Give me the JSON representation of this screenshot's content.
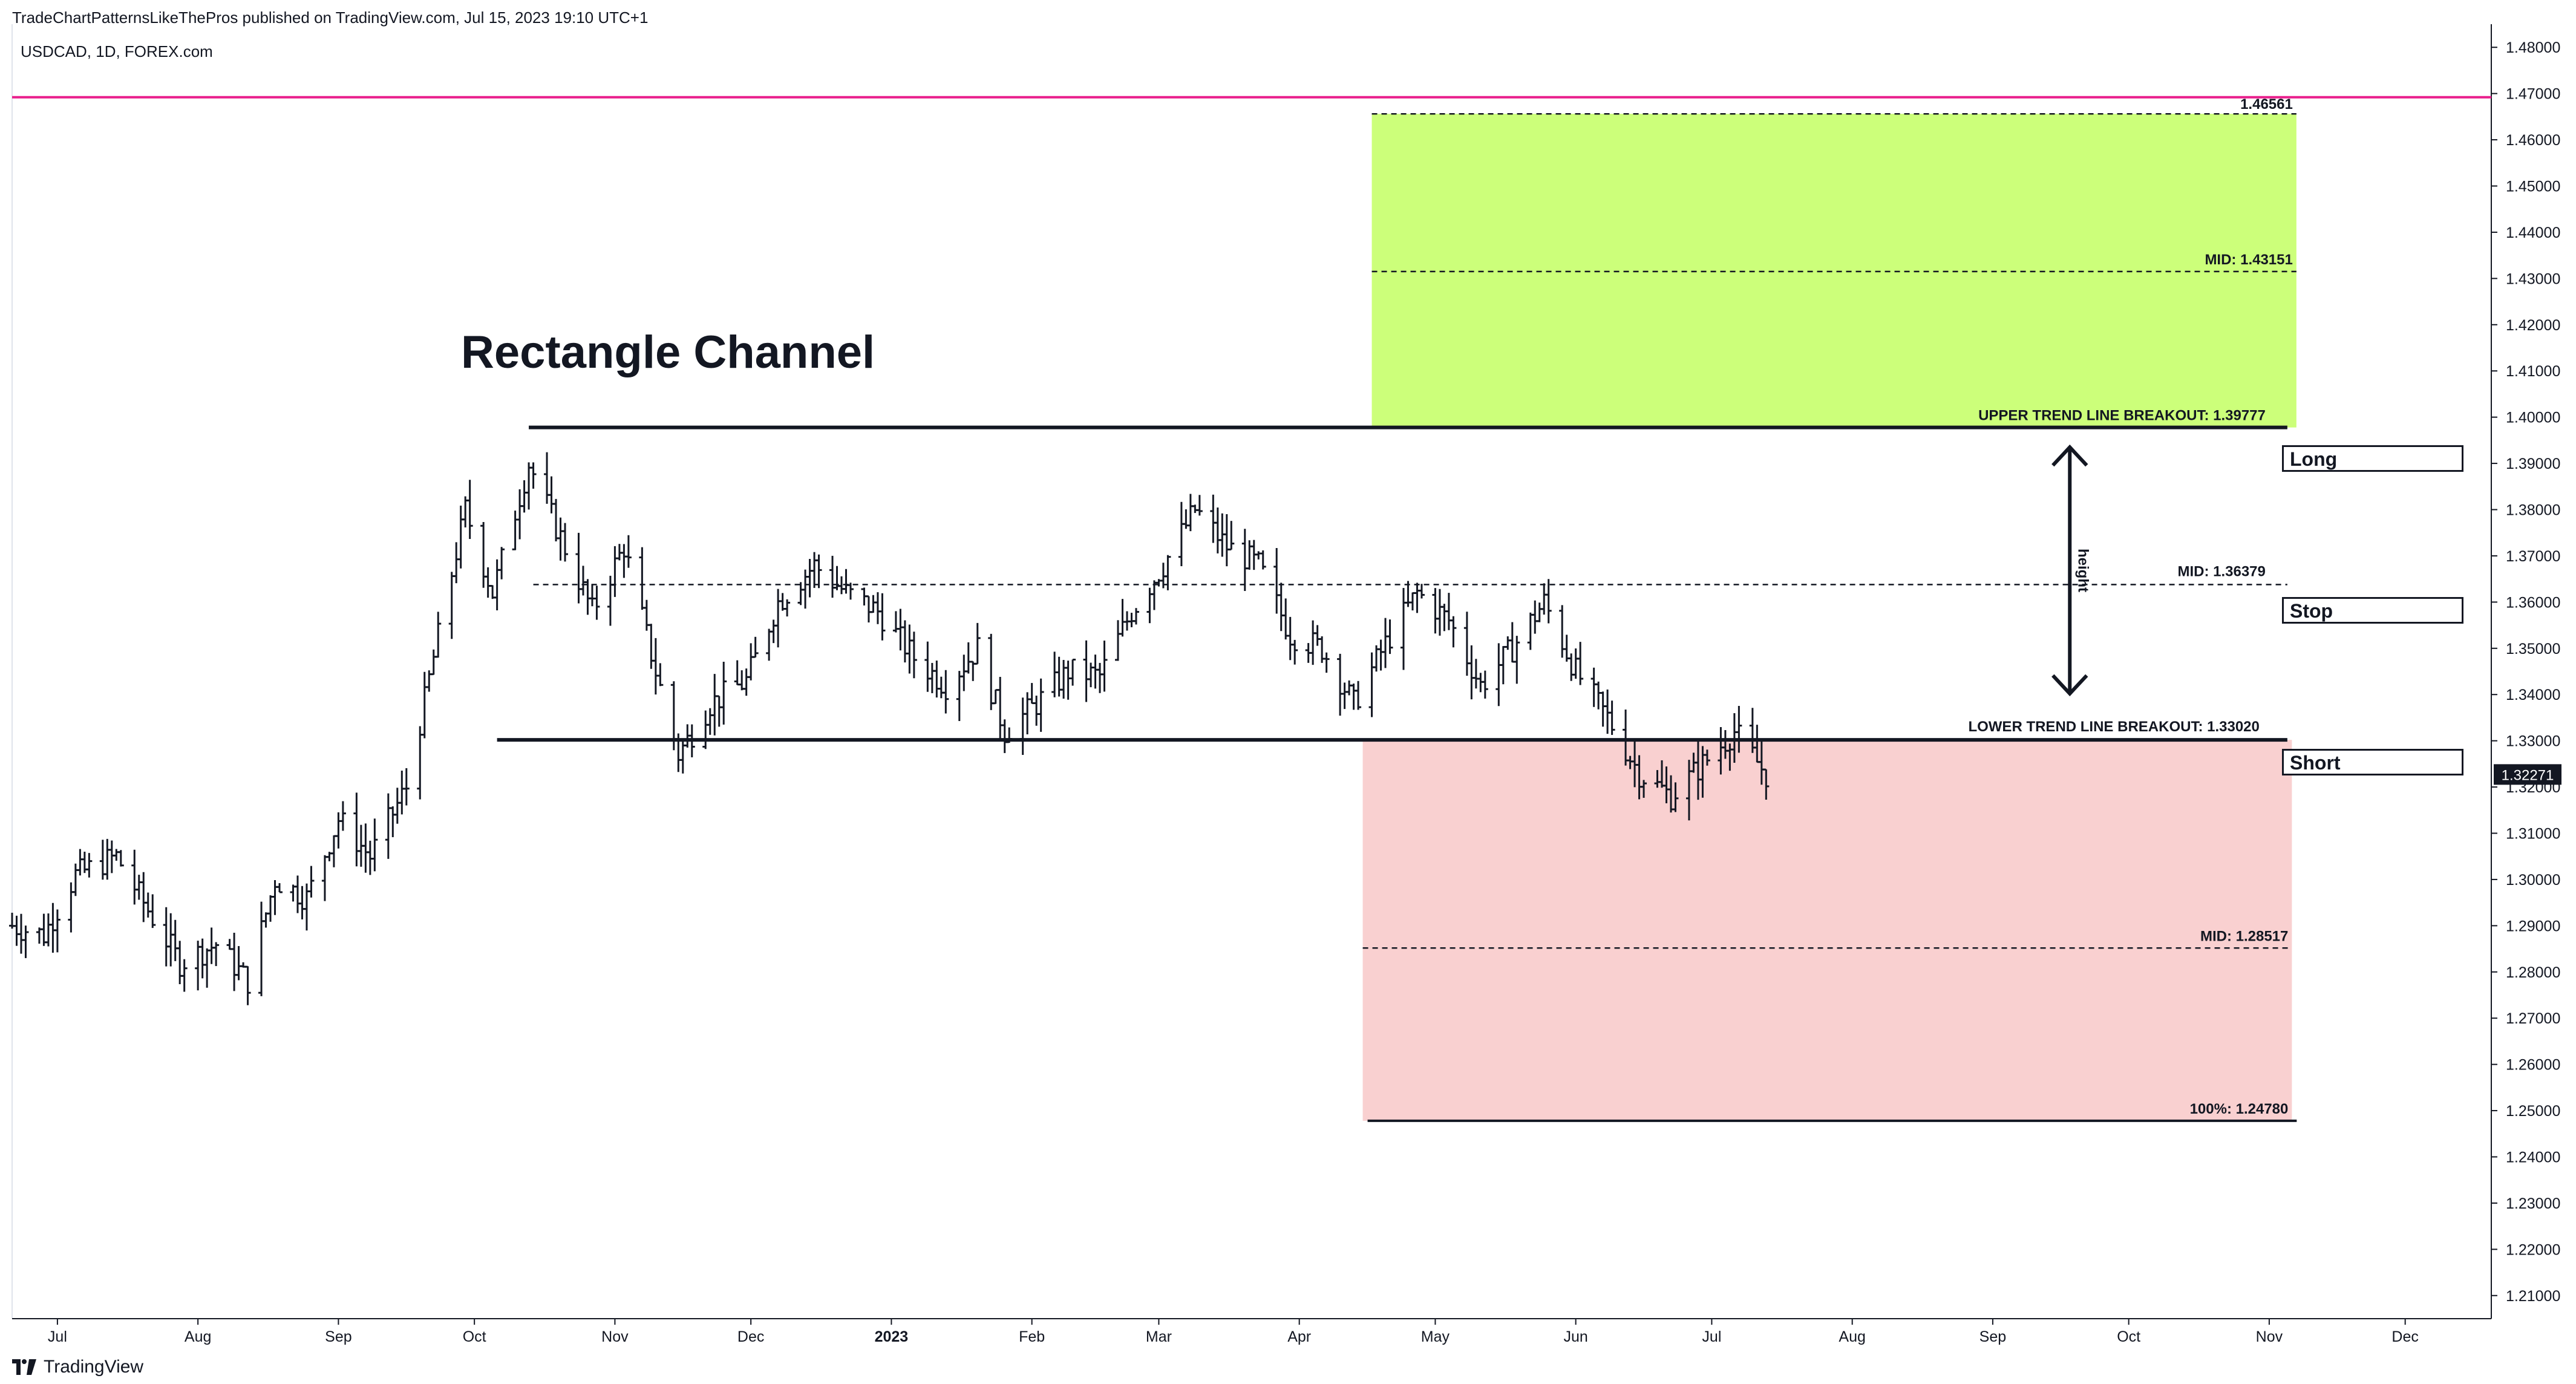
{
  "header": {
    "published_line": "TradeChartPatternsLikeThePros published on TradingView.com, Jul 15, 2023 19:10 UTC+1",
    "symbol_line": "USDCAD, 1D, FOREX.com"
  },
  "branding": {
    "text": "TradingView",
    "icon": "tradingview-logo-icon"
  },
  "labels": {
    "long": "Long",
    "stop": "Stop",
    "short": "Short",
    "height": "height"
  },
  "colors": {
    "magenta_line": "#e91e8c",
    "target_green": "#ccff7a",
    "target_red": "#f9d0d0",
    "price_tag_bg": "#131722",
    "bar_color": "#131722"
  },
  "chart_data": {
    "type": "ohlc",
    "title": "Rectangle Channel",
    "symbol": "USDCAD",
    "interval": "1D",
    "ylim": [
      1.205,
      1.485
    ],
    "y_ticks": [
      "1.21000",
      "1.22000",
      "1.23000",
      "1.24000",
      "1.25000",
      "1.26000",
      "1.27000",
      "1.28000",
      "1.29000",
      "1.30000",
      "1.31000",
      "1.32000",
      "1.33000",
      "1.34000",
      "1.35000",
      "1.36000",
      "1.37000",
      "1.38000",
      "1.39000",
      "1.40000",
      "1.41000",
      "1.42000",
      "1.43000",
      "1.44000",
      "1.45000",
      "1.46000",
      "1.47000",
      "1.48000"
    ],
    "x_ticks": [
      "Jul",
      "Aug",
      "Sep",
      "Oct",
      "Nov",
      "Dec",
      "2023",
      "Feb",
      "Mar",
      "Apr",
      "May",
      "Jun",
      "Jul",
      "Aug",
      "Sep",
      "Oct",
      "Nov",
      "Dec"
    ],
    "x_range": [
      "2022-06-21",
      "2023-12-20"
    ],
    "current_price": "1.32271",
    "price_path": [
      [
        "2022-06-21",
        1.29
      ],
      [
        "2022-06-28",
        1.288
      ],
      [
        "2022-07-05",
        1.301
      ],
      [
        "2022-07-14",
        1.305
      ],
      [
        "2022-07-20",
        1.295
      ],
      [
        "2022-07-28",
        1.282
      ],
      [
        "2022-08-05",
        1.286
      ],
      [
        "2022-08-12",
        1.278
      ],
      [
        "2022-08-18",
        1.3
      ],
      [
        "2022-08-25",
        1.296
      ],
      [
        "2022-09-01",
        1.313
      ],
      [
        "2022-09-08",
        1.305
      ],
      [
        "2022-09-16",
        1.32
      ],
      [
        "2022-09-22",
        1.348
      ],
      [
        "2022-09-29",
        1.38
      ],
      [
        "2022-10-05",
        1.362
      ],
      [
        "2022-10-13",
        1.39
      ],
      [
        "2022-10-20",
        1.374
      ],
      [
        "2022-10-27",
        1.358
      ],
      [
        "2022-11-03",
        1.372
      ],
      [
        "2022-11-10",
        1.345
      ],
      [
        "2022-11-15",
        1.327
      ],
      [
        "2022-11-22",
        1.338
      ],
      [
        "2022-11-30",
        1.343
      ],
      [
        "2022-12-07",
        1.36
      ],
      [
        "2022-12-15",
        1.368
      ],
      [
        "2022-12-22",
        1.362
      ],
      [
        "2022-12-29",
        1.358
      ],
      [
        "2023-01-06",
        1.348
      ],
      [
        "2023-01-13",
        1.342
      ],
      [
        "2023-01-20",
        1.35
      ],
      [
        "2023-01-26",
        1.332
      ],
      [
        "2023-02-02",
        1.338
      ],
      [
        "2023-02-09",
        1.345
      ],
      [
        "2023-02-16",
        1.344
      ],
      [
        "2023-02-23",
        1.358
      ],
      [
        "2023-03-02",
        1.368
      ],
      [
        "2023-03-09",
        1.38
      ],
      [
        "2023-03-16",
        1.372
      ],
      [
        "2023-03-23",
        1.368
      ],
      [
        "2023-03-30",
        1.353
      ],
      [
        "2023-04-06",
        1.35
      ],
      [
        "2023-04-13",
        1.338
      ],
      [
        "2023-04-20",
        1.351
      ],
      [
        "2023-04-27",
        1.362
      ],
      [
        "2023-05-04",
        1.356
      ],
      [
        "2023-05-11",
        1.342
      ],
      [
        "2023-05-18",
        1.35
      ],
      [
        "2023-05-25",
        1.36
      ],
      [
        "2023-06-01",
        1.345
      ],
      [
        "2023-06-08",
        1.335
      ],
      [
        "2023-06-15",
        1.323
      ],
      [
        "2023-06-22",
        1.318
      ],
      [
        "2023-06-29",
        1.325
      ],
      [
        "2023-07-06",
        1.332
      ],
      [
        "2023-07-13",
        1.3227
      ]
    ]
  },
  "annotations": {
    "magenta_level": 1.4692,
    "upper_trend_line": {
      "value": 1.39777,
      "x_start": "2022-10-13",
      "x_end": "2023-11-05",
      "label": "UPPER TREND LINE BREAKOUT: 1.39777"
    },
    "lower_trend_line": {
      "value": 1.3302,
      "x_start": "2022-10-06",
      "x_end": "2023-11-05",
      "label": "LOWER TREND LINE BREAKOUT: 1.33020"
    },
    "channel_mid": {
      "value": 1.36379,
      "x_start": "2022-10-14",
      "x_end": "2023-11-05",
      "label": "MID: 1.36379"
    },
    "long_target": {
      "from": 1.39777,
      "to": 1.46561,
      "mid": 1.43151,
      "x_start": "2023-04-17",
      "x_end": "2023-11-07",
      "top_label": "1.46561",
      "mid_label": "MID: 1.43151"
    },
    "short_target": {
      "from": 1.3302,
      "to": 1.2478,
      "mid": 1.28517,
      "x_start": "2023-04-15",
      "x_end": "2023-11-06",
      "mid_label": "MID: 1.28517",
      "bottom_label": "100%: 1.24780"
    },
    "height_arrow": {
      "date": "2023-09-18",
      "from": 1.3402,
      "to": 1.3935
    }
  }
}
